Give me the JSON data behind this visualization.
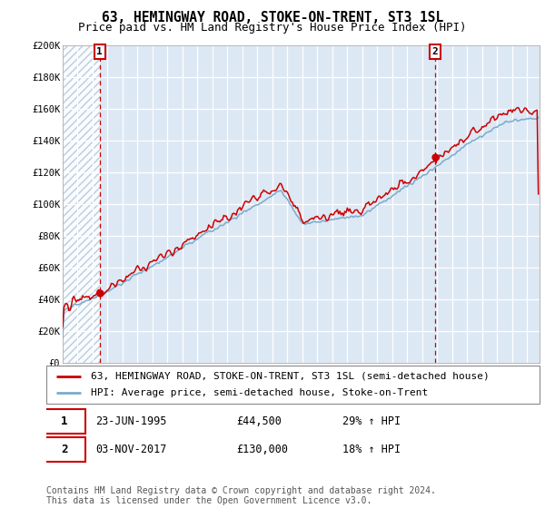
{
  "title": "63, HEMINGWAY ROAD, STOKE-ON-TRENT, ST3 1SL",
  "subtitle": "Price paid vs. HM Land Registry's House Price Index (HPI)",
  "ylim": [
    0,
    200000
  ],
  "yticks": [
    0,
    20000,
    40000,
    60000,
    80000,
    100000,
    120000,
    140000,
    160000,
    180000,
    200000
  ],
  "ytick_labels": [
    "£0",
    "£20K",
    "£40K",
    "£60K",
    "£80K",
    "£100K",
    "£120K",
    "£140K",
    "£160K",
    "£180K",
    "£200K"
  ],
  "xlim_start": 1993.0,
  "xlim_end": 2024.83,
  "sale1_date": 1995.47,
  "sale1_price": 44500,
  "sale2_date": 2017.84,
  "sale2_price": 130000,
  "line_color_sold": "#cc0000",
  "line_color_hpi": "#7aabcc",
  "vline_color": "#cc0000",
  "plot_bg_color": "#dce8f4",
  "grid_color": "#ffffff",
  "legend_label_sold": "63, HEMINGWAY ROAD, STOKE-ON-TRENT, ST3 1SL (semi-detached house)",
  "legend_label_hpi": "HPI: Average price, semi-detached house, Stoke-on-Trent",
  "info1_num": "1",
  "info1_date": "23-JUN-1995",
  "info1_price": "£44,500",
  "info1_hpi": "29% ↑ HPI",
  "info2_num": "2",
  "info2_date": "03-NOV-2017",
  "info2_price": "£130,000",
  "info2_hpi": "18% ↑ HPI",
  "footer": "Contains HM Land Registry data © Crown copyright and database right 2024.\nThis data is licensed under the Open Government Licence v3.0.",
  "title_fontsize": 10.5,
  "subtitle_fontsize": 9,
  "tick_fontsize": 7.5,
  "legend_fontsize": 8,
  "info_fontsize": 8.5,
  "footer_fontsize": 7
}
